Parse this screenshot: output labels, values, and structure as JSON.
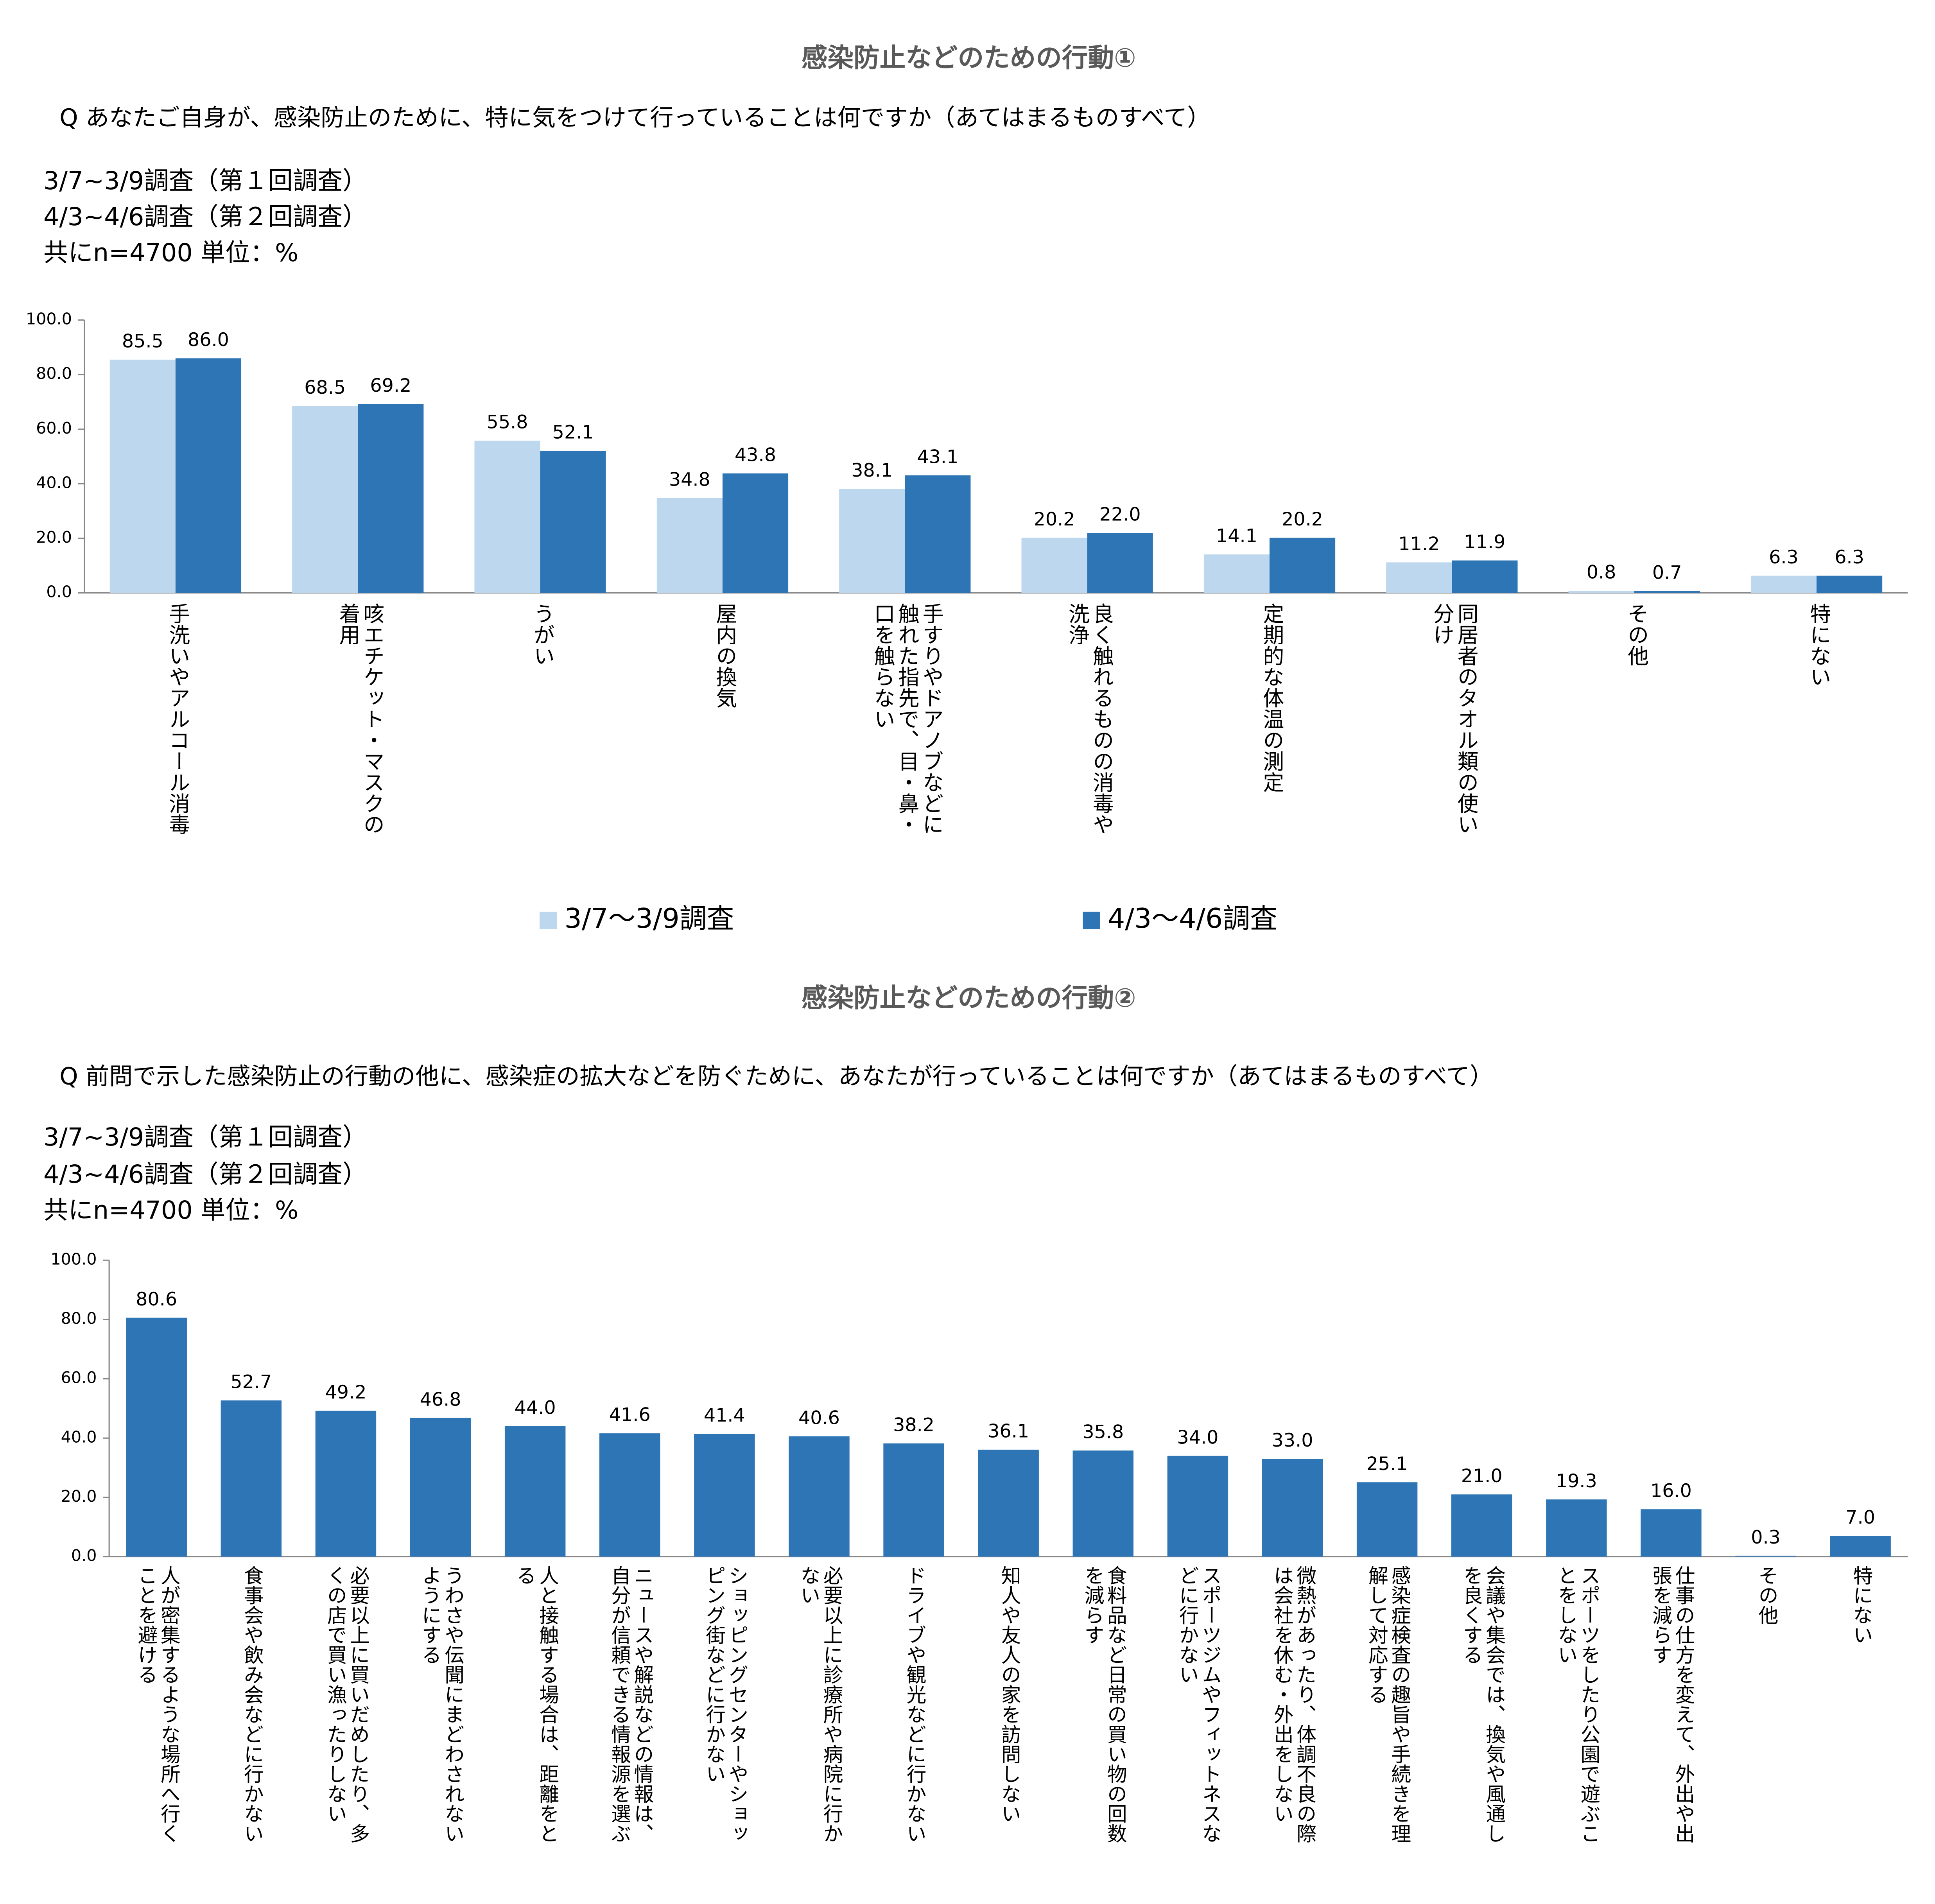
{
  "chart_data": [
    {
      "type": "bar",
      "title": "感染防止などのための行動①",
      "question": "Q あなたご自身が、感染防止のために、特に気をつけて行っていることは何ですか（あてはまるものすべて）",
      "notes": [
        "3/7~3/9調査（第１回調査）",
        "4/3~4/6調査（第２回調査）",
        "共にn=4700  単位：%"
      ],
      "categories": [
        "手洗いやアルコール消毒",
        "咳エチケット・マスクの着用",
        "うがい",
        "屋内の換気",
        "手すりやドアノブなどに触れた指先で、目・鼻・口を触らない",
        "良く触れるものの消毒や洗浄",
        "定期的な体温の測定",
        "同居者のタオル類の使い分け",
        "その他",
        "特にない"
      ],
      "series": [
        {
          "name": "3/7～3/9調査",
          "color": "#bdd7ee",
          "values": [
            85.5,
            68.5,
            55.8,
            34.8,
            38.1,
            20.2,
            14.1,
            11.2,
            0.8,
            6.3
          ],
          "value_labels": [
            "85.5",
            "68.5",
            "55.8",
            "34.8",
            "38.1",
            "20.2",
            "14.1",
            "11.2",
            "0.8",
            "6.3"
          ]
        },
        {
          "name": "4/3～4/6調査",
          "color": "#2e75b6",
          "values": [
            86.0,
            69.2,
            52.1,
            43.8,
            43.1,
            22.0,
            20.2,
            11.9,
            0.7,
            6.3
          ],
          "value_labels": [
            "86.0",
            "69.2",
            "52.1",
            "43.8",
            "43.1",
            "22.0",
            "20.2",
            "11.9",
            "0.7",
            "6.3"
          ]
        }
      ],
      "ylim": [
        0,
        100
      ],
      "yticks": [
        {
          "value": 0,
          "label": "0.0"
        },
        {
          "value": 20,
          "label": "20.0"
        },
        {
          "value": 40,
          "label": "40.0"
        },
        {
          "value": 60,
          "label": "60.0"
        },
        {
          "value": 80,
          "label": "80.0"
        },
        {
          "value": 100,
          "label": "100.0"
        }
      ],
      "legend": "bottom"
    },
    {
      "type": "bar",
      "title": "感染防止などのための行動②",
      "question": "Q 前問で示した感染防止の行動の他に、感染症の拡大などを防ぐために、あなたが行っていることは何ですか（あてはまるものすべて）",
      "notes": [
        "3/7~3/9調査（第１回調査）",
        "4/3~4/6調査（第２回調査）",
        "共にn=4700  単位：%"
      ],
      "categories": [
        "人が密集するような場所へ行くことを避ける",
        "食事会や飲み会などに行かない",
        "必要以上に買いだめしたり、多くの店で買い漁ったりしない",
        "うわさや伝聞にまどわされないようにする",
        "人と接触する場合は、距離をとる",
        "ニュースや解説などの情報は、自分が信頼できる情報源を選ぶ",
        "ショッピングセンターやショッピング街などに行かない",
        "必要以上に診療所や病院に行かない",
        "ドライブや観光などに行かない",
        "知人や友人の家を訪問しない",
        "食料品など日常の買い物の回数を減らす",
        "スポーツジムやフィットネスなどに行かない",
        "微熱があったり、体調不良の際は会社を休む・外出をしない",
        "感染症検査の趣旨や手続きを理解して対応する",
        "会議や集会では、換気や風通しを良くする",
        "スポーツをしたり公園で遊ぶことをしない",
        "仕事の仕方を変えて、外出や出張を減らす",
        "その他",
        "特にない"
      ],
      "color": "#2e75b6",
      "values": [
        80.6,
        52.7,
        49.2,
        46.8,
        44.0,
        41.6,
        41.4,
        40.6,
        38.2,
        36.1,
        35.8,
        34.0,
        33.0,
        25.1,
        21.0,
        19.3,
        16.0,
        0.3,
        7.0
      ],
      "value_labels": [
        "80.6",
        "52.7",
        "49.2",
        "46.8",
        "44.0",
        "41.6",
        "41.4",
        "40.6",
        "38.2",
        "36.1",
        "35.8",
        "34.0",
        "33.0",
        "25.1",
        "21.0",
        "19.3",
        "16.0",
        "0.3",
        "7.0"
      ],
      "ylim": [
        0,
        100
      ],
      "yticks": [
        {
          "value": 0,
          "label": "0.0"
        },
        {
          "value": 20,
          "label": "20.0"
        },
        {
          "value": 40,
          "label": "40.0"
        },
        {
          "value": 60,
          "label": "60.0"
        },
        {
          "value": 80,
          "label": "80.0"
        },
        {
          "value": 100,
          "label": "100.0"
        }
      ]
    }
  ]
}
